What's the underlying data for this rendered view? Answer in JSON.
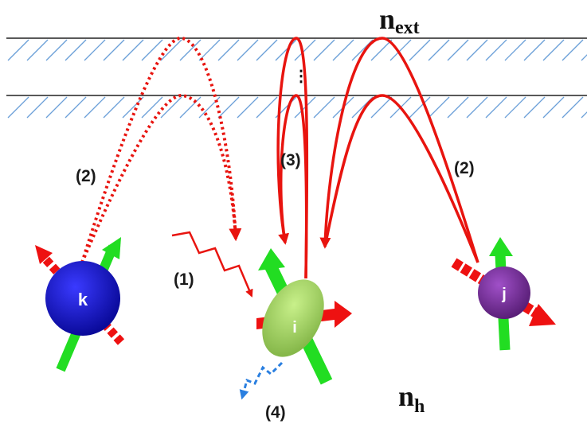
{
  "labels": {
    "n_ext_main": "n",
    "n_ext_sub": "ext",
    "n_h_main": "n",
    "n_h_sub": "h",
    "process_1": "(1)",
    "process_2_left": "(2)",
    "process_2_right": "(2)",
    "process_3": "(3)",
    "process_4": "(4)",
    "dots": "⋮"
  },
  "atoms": {
    "k": "k",
    "i": "i",
    "j": "j"
  },
  "colors": {
    "path_red": "#e8140f",
    "spin_green": "#22dd22",
    "spin_red": "#ee1111",
    "atom_k": "#1414c8",
    "atom_i": "#9ed05a",
    "atom_j": "#7b2f9e",
    "emission_blue": "#2a7fe0",
    "layer_hatch": "#6a9fd8"
  }
}
